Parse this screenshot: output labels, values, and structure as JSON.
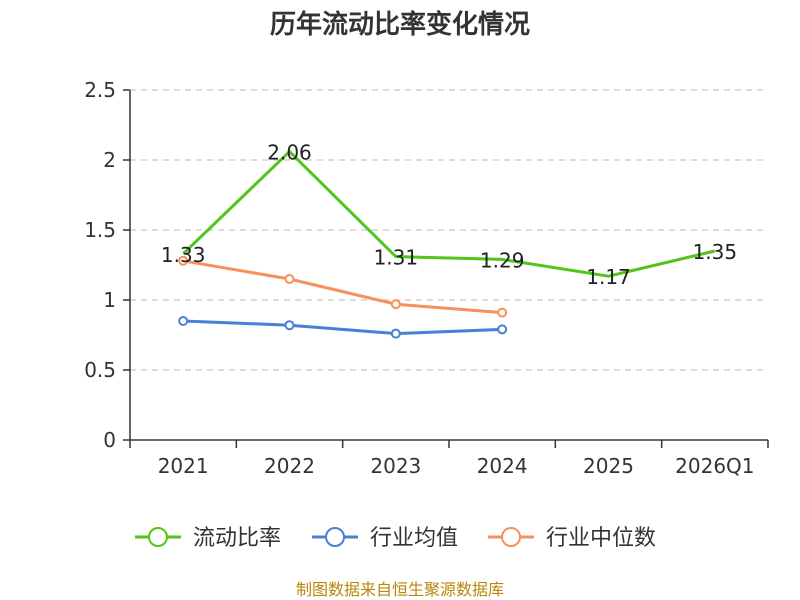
{
  "chart_data": {
    "type": "line",
    "title": "历年流动比率变化情况",
    "categories": [
      "2021",
      "2022",
      "2023",
      "2024",
      "2025",
      "2026Q1"
    ],
    "ylim": [
      0,
      2.5
    ],
    "yticks": [
      "0",
      "0.5",
      "1",
      "1.5",
      "2",
      "2.5"
    ],
    "grid": true,
    "legend_position": "bottom",
    "series": [
      {
        "name": "流动比率",
        "color": "#52c41a",
        "values": [
          1.33,
          2.06,
          1.31,
          1.29,
          1.17,
          1.35
        ],
        "labels": [
          "1.33",
          "2.06",
          "1.31",
          "1.29",
          "1.17",
          "1.35"
        ],
        "markers": false
      },
      {
        "name": "行业均值",
        "color": "#4a7fd6",
        "values": [
          0.85,
          0.82,
          0.76,
          0.79,
          null,
          null
        ],
        "markers": true
      },
      {
        "name": "行业中位数",
        "color": "#f7905a",
        "values": [
          1.28,
          1.15,
          0.97,
          0.91,
          null,
          null
        ],
        "markers": true
      }
    ],
    "source": "制图数据来自恒生聚源数据库"
  }
}
